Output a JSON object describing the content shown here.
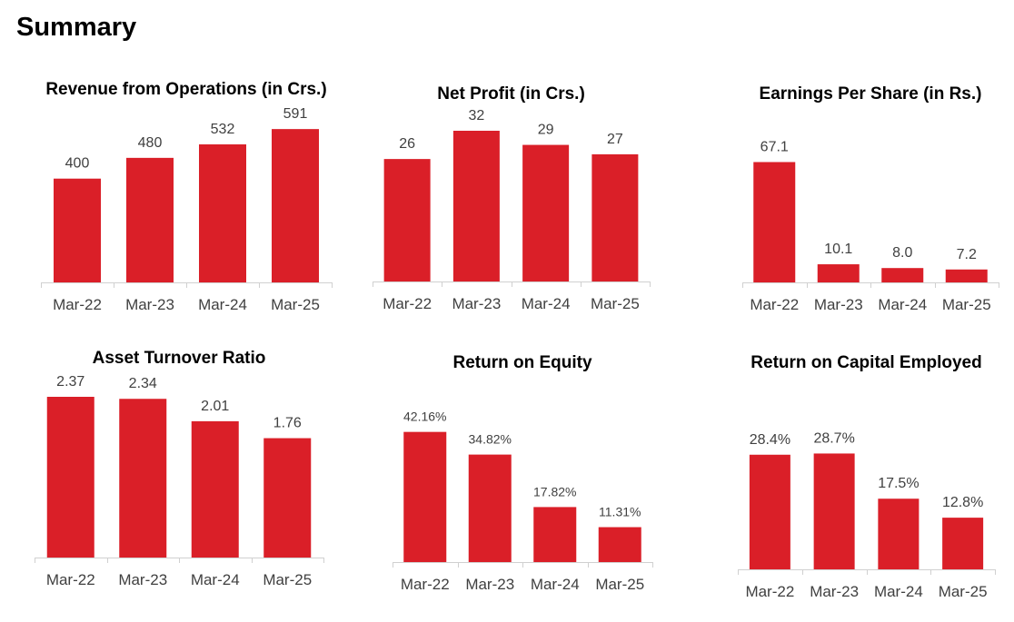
{
  "page": {
    "title": "Summary"
  },
  "colors": {
    "bar": "#da1f28",
    "axis": "#d0d0d0",
    "label": "#404040"
  },
  "chart_data": [
    {
      "id": "revenue",
      "type": "bar",
      "title": "Revenue from Operations (in Crs.)",
      "categories": [
        "Mar-22",
        "Mar-23",
        "Mar-24",
        "Mar-25"
      ],
      "values": [
        400,
        480,
        532,
        591
      ],
      "labels": [
        "400",
        "480",
        "532",
        "591"
      ],
      "ylim": [
        0,
        700
      ],
      "grid": false,
      "xlabel": "",
      "ylabel": ""
    },
    {
      "id": "net-profit",
      "type": "bar",
      "title": "Net Profit (in Crs.)",
      "categories": [
        "Mar-22",
        "Mar-23",
        "Mar-24",
        "Mar-25"
      ],
      "values": [
        26,
        32,
        29,
        27
      ],
      "labels": [
        "26",
        "32",
        "29",
        "27"
      ],
      "ylim": [
        0,
        32
      ],
      "grid": false,
      "xlabel": "",
      "ylabel": ""
    },
    {
      "id": "eps",
      "type": "bar",
      "title": "Earnings Per Share (in Rs.)",
      "categories": [
        "Mar-22",
        "Mar-23",
        "Mar-24",
        "Mar-25"
      ],
      "values": [
        67.1,
        10.1,
        8.0,
        7.2
      ],
      "labels": [
        "67.1",
        "10.1",
        "8.0",
        "7.2"
      ],
      "ylim": [
        0,
        80
      ],
      "grid": false,
      "xlabel": "",
      "ylabel": ""
    },
    {
      "id": "asset-turnover",
      "type": "bar",
      "title": "Asset Turnover Ratio",
      "categories": [
        "Mar-22",
        "Mar-23",
        "Mar-24",
        "Mar-25"
      ],
      "values": [
        2.37,
        2.34,
        2.01,
        1.76
      ],
      "labels": [
        "2.37",
        "2.34",
        "2.01",
        "1.76"
      ],
      "ylim": [
        0,
        2.37
      ],
      "grid": false,
      "xlabel": "",
      "ylabel": ""
    },
    {
      "id": "roe",
      "type": "bar",
      "title": "Return on Equity",
      "categories": [
        "Mar-22",
        "Mar-23",
        "Mar-24",
        "Mar-25"
      ],
      "values": [
        42.16,
        34.82,
        17.82,
        11.31
      ],
      "labels": [
        "42.16%",
        "34.82%",
        "17.82%",
        "11.31%"
      ],
      "ylim": [
        0,
        50
      ],
      "grid": false,
      "xlabel": "",
      "ylabel": ""
    },
    {
      "id": "roce",
      "type": "bar",
      "title": "Return on Capital Employed",
      "categories": [
        "Mar-22",
        "Mar-23",
        "Mar-24",
        "Mar-25"
      ],
      "values": [
        28.4,
        28.7,
        17.5,
        12.8
      ],
      "labels": [
        "28.4%",
        "28.7%",
        "17.5%",
        "12.8%"
      ],
      "ylim": [
        0,
        36
      ],
      "grid": false,
      "xlabel": "",
      "ylabel": ""
    }
  ]
}
